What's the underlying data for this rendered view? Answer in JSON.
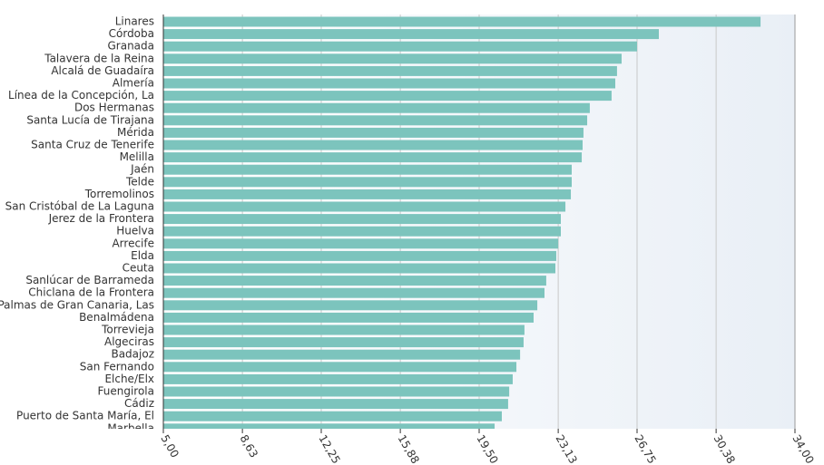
{
  "chart_data": {
    "type": "hbar",
    "color": "#7cc4bd",
    "grid": true,
    "categories": [
      "Linares",
      "Córdoba",
      "Granada",
      "Talavera de la Reina",
      "Alcalá de Guadaíra",
      "Almería",
      "Línea de la Concepción, La",
      "Dos Hermanas",
      "Santa Lucía de Tirajana",
      "Mérida",
      "Santa Cruz de Tenerife",
      "Melilla",
      "Jaén",
      "Telde",
      "Torremolinos",
      "San Cristóbal de La Laguna",
      "Jerez de la Frontera",
      "Huelva",
      "Arrecife",
      "Elda",
      "Ceuta",
      "Sanlúcar de Barrameda",
      "Chiclana de la Frontera",
      "Palmas de Gran Canaria, Las",
      "Benalmádena",
      "Torrevieja",
      "Algeciras",
      "Badajoz",
      "San Fernando",
      "Elche/Elx",
      "Fuengirola",
      "Cádiz",
      "Puerto de Santa María, El",
      "Marbella"
    ],
    "values": [
      32.42,
      27.75,
      26.75,
      26.04,
      25.83,
      25.75,
      25.58,
      24.58,
      24.46,
      24.29,
      24.25,
      24.21,
      23.75,
      23.75,
      23.71,
      23.46,
      23.25,
      23.25,
      23.13,
      23.04,
      23.0,
      22.58,
      22.5,
      22.17,
      22.0,
      21.58,
      21.54,
      21.38,
      21.21,
      21.04,
      20.88,
      20.83,
      20.54,
      20.21
    ],
    "xlim": [
      5,
      34
    ],
    "xticks": [
      {
        "value": 5,
        "label": "5,00"
      },
      {
        "value": 8.63,
        "label": "8,63"
      },
      {
        "value": 12.25,
        "label": "12,25"
      },
      {
        "value": 15.88,
        "label": "15,88"
      },
      {
        "value": 19.5,
        "label": "19,50"
      },
      {
        "value": 23.13,
        "label": "23,13"
      },
      {
        "value": 26.75,
        "label": "26,75"
      },
      {
        "value": 30.38,
        "label": "30,38"
      },
      {
        "value": 34,
        "label": "34,00"
      }
    ]
  }
}
